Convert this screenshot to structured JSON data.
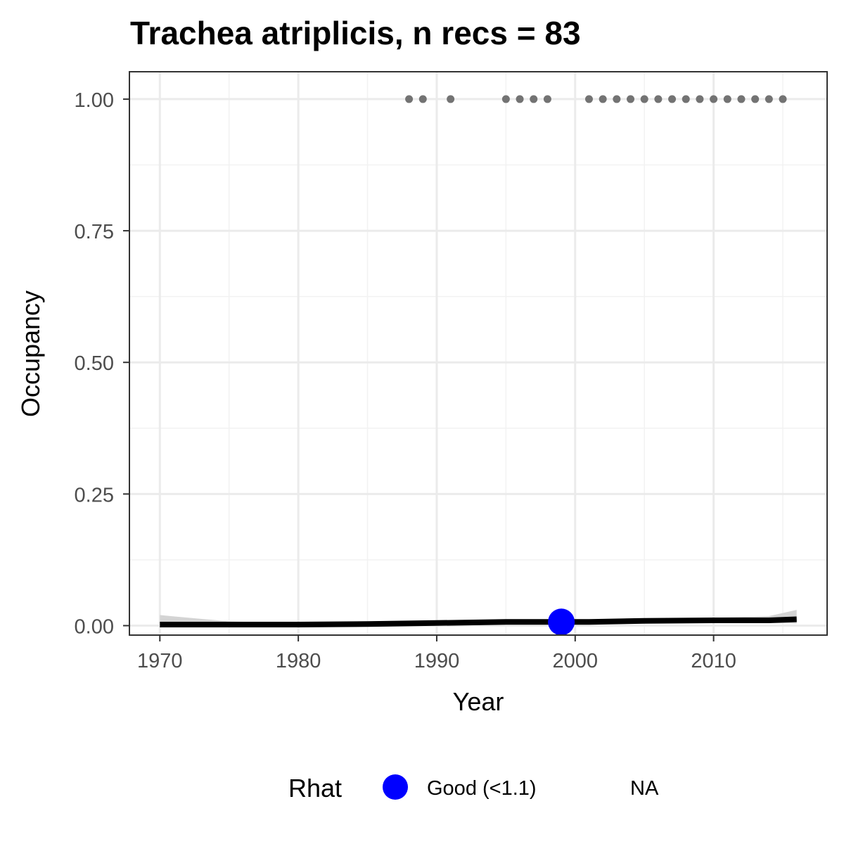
{
  "chart_data": {
    "type": "line",
    "title": "Trachea atriplicis, n recs = 83",
    "xlabel": "Year",
    "ylabel": "Occupancy",
    "xlim": [
      1967.8,
      2018.2
    ],
    "ylim": [
      -0.018,
      1.052
    ],
    "x_ticks": [
      1970,
      1980,
      1990,
      2000,
      2010
    ],
    "x_tick_labels": [
      "1970",
      "1980",
      "1990",
      "2000",
      "2010"
    ],
    "y_ticks": [
      0,
      0.25,
      0.5,
      0.75,
      1.0
    ],
    "y_tick_labels": [
      "0.00",
      "0.25",
      "0.50",
      "0.75",
      "1.00"
    ],
    "grid": true,
    "series": [
      {
        "type": "line",
        "x": [
          1970,
          1975,
          1980,
          1985,
          1990,
          1995,
          1999,
          2001,
          2005,
          2010,
          2014,
          2016
        ],
        "y": [
          0.002,
          0.002,
          0.002,
          0.003,
          0.005,
          0.007,
          0.007,
          0.007,
          0.009,
          0.01,
          0.01,
          0.012
        ],
        "ci_lower": [
          0.0,
          0.0,
          0.0,
          0.001,
          0.002,
          0.004,
          0.004,
          0.004,
          0.005,
          0.006,
          0.005,
          0.004
        ],
        "ci_upper": [
          0.02,
          0.008,
          0.005,
          0.006,
          0.008,
          0.012,
          0.012,
          0.012,
          0.013,
          0.015,
          0.018,
          0.03
        ],
        "color": "#000000",
        "ci_color": "#d4d4d4"
      },
      {
        "type": "scatter",
        "x": [
          1988,
          1989,
          1991,
          1995,
          1996,
          1997,
          1998,
          2001,
          2002,
          2003,
          2004,
          2005,
          2006,
          2007,
          2008,
          2009,
          2010,
          2011,
          2012,
          2013,
          2014,
          2015
        ],
        "y": [
          1,
          1,
          1,
          1,
          1,
          1,
          1,
          1,
          1,
          1,
          1,
          1,
          1,
          1,
          1,
          1,
          1,
          1,
          1,
          1,
          1,
          1
        ],
        "color": "#737373"
      },
      {
        "type": "scatter",
        "x": [
          1999
        ],
        "y": [
          0.007
        ],
        "color": "#0000ff"
      }
    ],
    "legend": {
      "title": "Rhat",
      "position": "bottom",
      "entries": [
        {
          "label": "Good (<1.1)",
          "color": "#0000ff"
        },
        {
          "label": "NA",
          "color": ""
        }
      ]
    },
    "colors": {
      "panel_border": "#333333",
      "grid_major": "#ebebeb",
      "grid_minor": "#f2f2f2",
      "tick_text": "#4d4d4d"
    }
  }
}
